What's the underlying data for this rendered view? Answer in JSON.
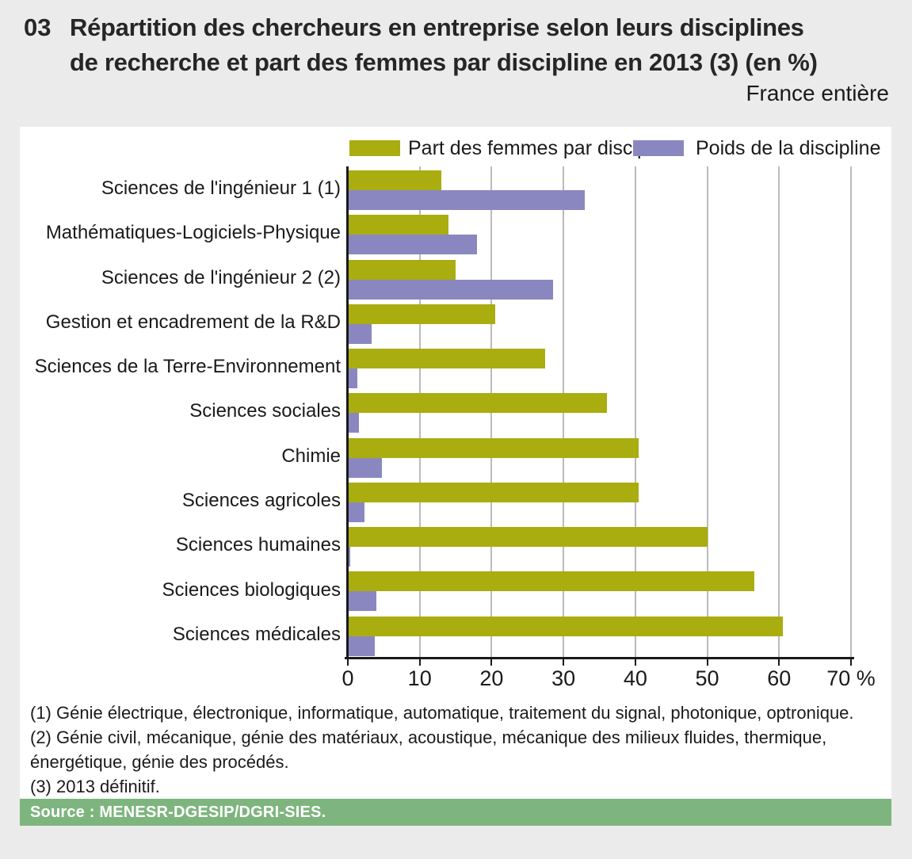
{
  "header": {
    "number": "03",
    "title_line1": "Répartition des chercheurs en entreprise selon leurs disciplines",
    "title_line2": "de recherche et part des femmes par discipline en 2013 (3) (en %)",
    "region": "France entière"
  },
  "legend": {
    "items": [
      {
        "label": "Part des femmes par discipline",
        "color": "#a9ad10"
      },
      {
        "label": "Poids de la discipline",
        "color": "#8a87c0"
      }
    ]
  },
  "chart_data": {
    "type": "bar",
    "orientation": "horizontal",
    "title": "Répartition des chercheurs en entreprise selon leurs disciplines de recherche et part des femmes par discipline en 2013 (3) (en %)",
    "subtitle": "France entière",
    "categories": [
      "Sciences de l'ingénieur 1 (1)",
      "Mathématiques-Logiciels-Physique",
      "Sciences de l'ingénieur 2 (2)",
      "Gestion et encadrement de la R&D",
      "Sciences de la Terre-Environnement",
      "Sciences sociales",
      "Chimie",
      "Sciences agricoles",
      "Sciences humaines",
      "Sciences biologiques",
      "Sciences médicales"
    ],
    "series": [
      {
        "name": "Part des femmes par discipline",
        "color": "#a9ad10",
        "values": [
          13,
          14,
          15,
          20.5,
          27.5,
          36,
          40.5,
          40.5,
          50,
          56.5,
          60.5
        ]
      },
      {
        "name": "Poids de la discipline",
        "color": "#8a87c0",
        "values": [
          33,
          18,
          28.5,
          3.3,
          1.3,
          1.5,
          4.7,
          2.3,
          0.3,
          4,
          3.7
        ]
      }
    ],
    "xlabel": "%",
    "xlim": [
      0,
      70
    ],
    "xticks": [
      0,
      10,
      20,
      30,
      40,
      50,
      60,
      70
    ],
    "xtick_labels": [
      "0",
      "10",
      "20",
      "30",
      "40",
      "50",
      "60",
      "70 %"
    ],
    "grid": "vertical",
    "legend_position": "top"
  },
  "footnotes": {
    "lines": [
      "(1) Génie électrique, électronique, informatique, automatique, traitement du signal, photonique, optronique.",
      "(2) Génie civil, mécanique, génie des matériaux, acoustique, mécanique des milieux fluides, thermique,",
      "énergétique, génie des procédés.",
      "(3) 2013 définitif."
    ]
  },
  "source": {
    "label": "Source : MENESR-DGESIP/DGRI-SIES."
  },
  "colors": {
    "bar_femmes": "#a9ad10",
    "bar_poids": "#8a87c0",
    "source_bar": "#7eb57e",
    "background": "#ebebeb",
    "panel": "#ffffff",
    "gridline": "#bbbbbb",
    "axis": "#1a1a1a",
    "text": "#1a1a1a"
  }
}
